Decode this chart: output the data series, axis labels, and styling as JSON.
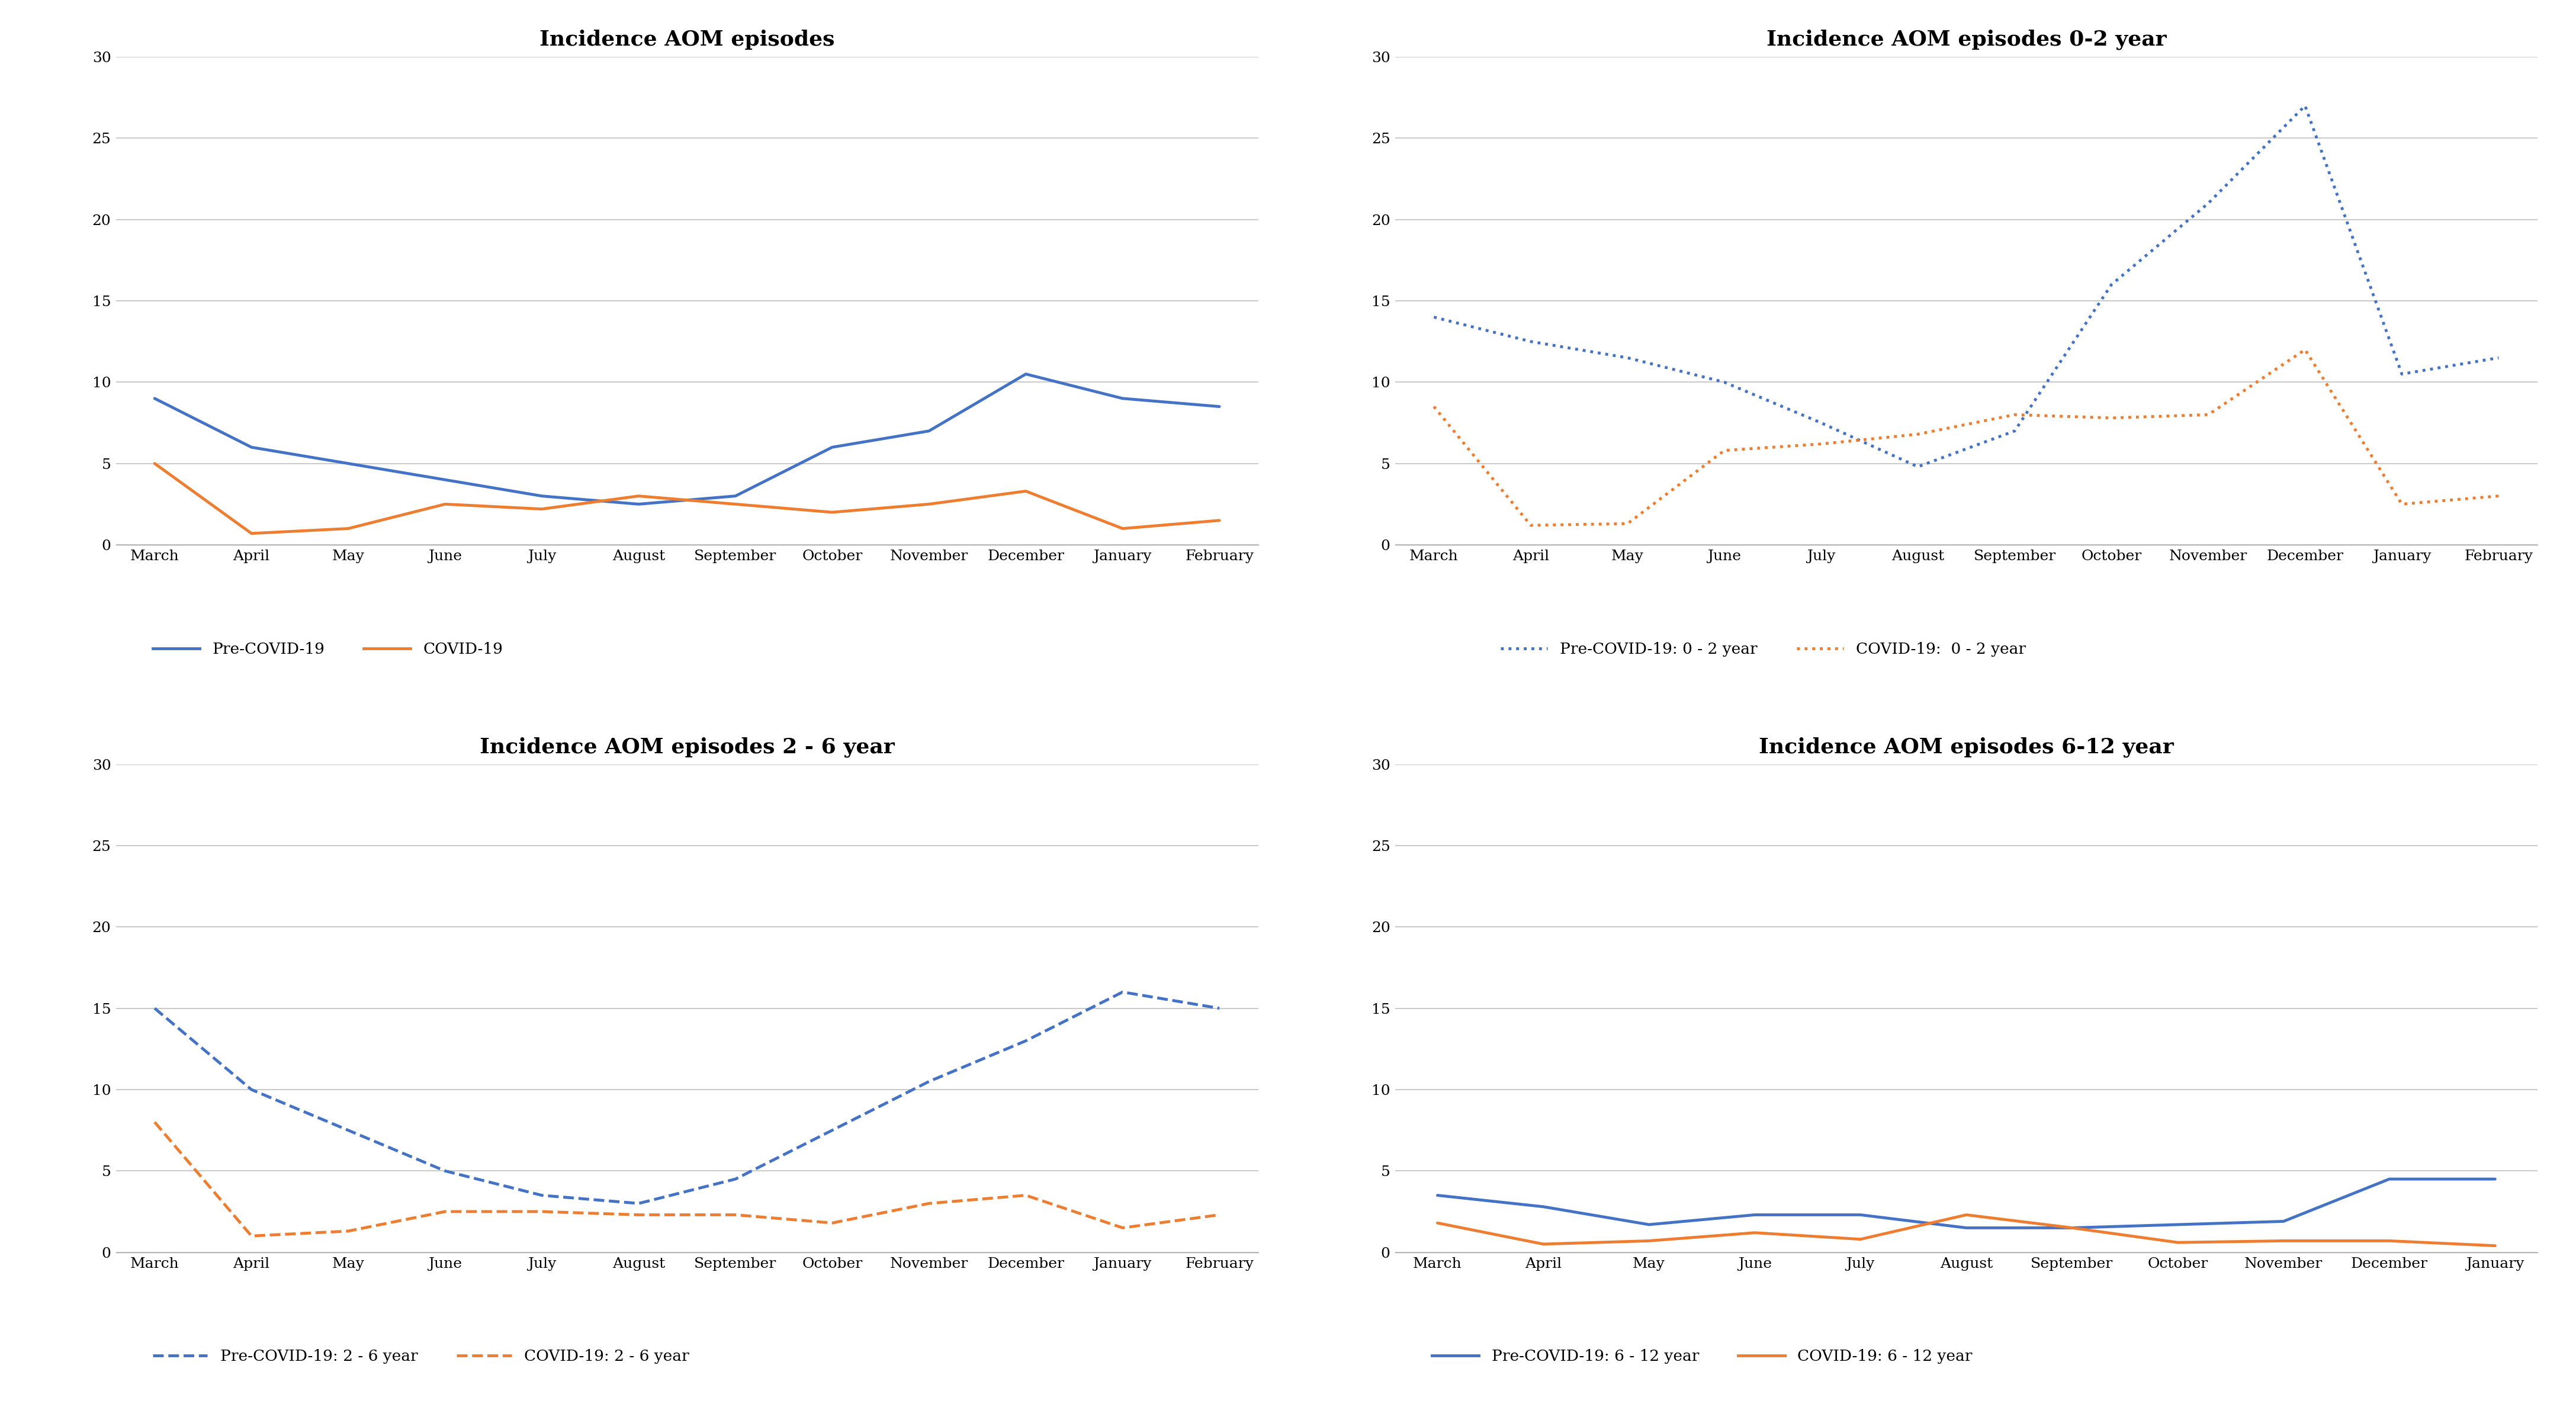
{
  "months_full": [
    "March",
    "April",
    "May",
    "June",
    "July",
    "August",
    "September",
    "October",
    "November",
    "December",
    "January",
    "February"
  ],
  "months_6_12": [
    "March",
    "April",
    "May",
    "June",
    "July",
    "August",
    "September",
    "October",
    "November",
    "December",
    "January"
  ],
  "ax1_title": "Incidence AOM episodes",
  "ax1_pre": [
    9.0,
    6.0,
    5.0,
    4.0,
    3.0,
    2.5,
    3.0,
    6.0,
    7.0,
    10.5,
    9.0,
    8.5
  ],
  "ax1_covid": [
    5.0,
    0.7,
    1.0,
    2.5,
    2.2,
    3.0,
    2.5,
    2.0,
    2.5,
    3.3,
    1.0,
    1.5
  ],
  "ax1_legend": [
    "Pre-COVID-19",
    "COVID-19"
  ],
  "ax2_title": "Incidence AOM episodes 0-2 year",
  "ax2_pre": [
    14.0,
    12.5,
    11.5,
    10.0,
    7.5,
    4.8,
    7.0,
    16.0,
    21.0,
    27.0,
    10.5,
    11.5
  ],
  "ax2_covid": [
    8.5,
    1.2,
    1.3,
    5.8,
    6.2,
    6.8,
    8.0,
    7.8,
    8.0,
    12.0,
    2.5,
    3.0
  ],
  "ax2_legend": [
    "Pre-COVID-19: 0 - 2 year",
    "COVID-19:  0 - 2 year"
  ],
  "ax3_title": "Incidence AOM episodes 2 - 6 year",
  "ax3_pre": [
    15.0,
    10.0,
    7.5,
    5.0,
    3.5,
    3.0,
    4.5,
    7.5,
    10.5,
    13.0,
    16.0,
    15.0
  ],
  "ax3_covid": [
    8.0,
    1.0,
    1.3,
    2.5,
    2.5,
    2.3,
    2.3,
    1.8,
    3.0,
    3.5,
    1.5,
    2.3
  ],
  "ax3_legend": [
    "Pre-COVID-19: 2 - 6 year",
    "COVID-19: 2 - 6 year"
  ],
  "ax4_title": "Incidence AOM episodes 6-12 year",
  "ax4_pre": [
    3.5,
    2.8,
    1.7,
    2.3,
    2.3,
    1.5,
    1.5,
    1.7,
    1.9,
    4.5,
    4.5
  ],
  "ax4_covid": [
    1.8,
    0.5,
    0.7,
    1.2,
    0.8,
    2.3,
    1.5,
    0.6,
    0.7,
    0.7,
    0.4
  ],
  "ax4_legend": [
    "Pre-COVID-19: 6 - 12 year",
    "COVID-19: 6 - 12 year"
  ],
  "blue_color": "#4472C4",
  "orange_color": "#ED7D31",
  "ylim": [
    0,
    30
  ],
  "yticks": [
    0,
    5,
    10,
    15,
    20,
    25,
    30
  ],
  "background_color": "#FFFFFF",
  "grid_color": "#C0C0C0"
}
